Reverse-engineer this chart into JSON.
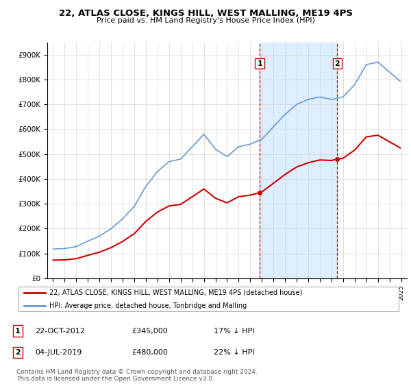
{
  "title": "22, ATLAS CLOSE, KINGS HILL, WEST MALLING, ME19 4PS",
  "subtitle": "Price paid vs. HM Land Registry's House Price Index (HPI)",
  "legend_line1": "22, ATLAS CLOSE, KINGS HILL, WEST MALLING, ME19 4PS (detached house)",
  "legend_line2": "HPI: Average price, detached house, Tonbridge and Malling",
  "annotation1_label": "1",
  "annotation1_date": "22-OCT-2012",
  "annotation1_price": "£345,000",
  "annotation1_pct": "17% ↓ HPI",
  "annotation2_label": "2",
  "annotation2_date": "04-JUL-2019",
  "annotation2_price": "£480,000",
  "annotation2_pct": "22% ↓ HPI",
  "footnote": "Contains HM Land Registry data © Crown copyright and database right 2024.\nThis data is licensed under the Open Government Licence v3.0.",
  "sale1_x": 2012.81,
  "sale1_y": 345000,
  "sale2_x": 2019.5,
  "sale2_y": 480000,
  "hpi_color": "#6699cc",
  "price_color": "#cc0000",
  "shading_color": "#ddeeff",
  "vline_color": "#cc0000",
  "background_color": "#ffffff",
  "ylim": [
    0,
    950000
  ],
  "xlim": [
    1994.5,
    2025.5
  ],
  "yticks": [
    0,
    100000,
    200000,
    300000,
    400000,
    500000,
    600000,
    700000,
    800000,
    900000
  ],
  "ytick_labels": [
    "£0",
    "£100K",
    "£200K",
    "£300K",
    "£400K",
    "£500K",
    "£600K",
    "£700K",
    "£800K",
    "£900K"
  ],
  "xticks": [
    1995,
    1996,
    1997,
    1998,
    1999,
    2000,
    2001,
    2002,
    2003,
    2004,
    2005,
    2006,
    2007,
    2008,
    2009,
    2010,
    2011,
    2012,
    2013,
    2014,
    2015,
    2016,
    2017,
    2018,
    2019,
    2020,
    2021,
    2022,
    2023,
    2024,
    2025
  ]
}
